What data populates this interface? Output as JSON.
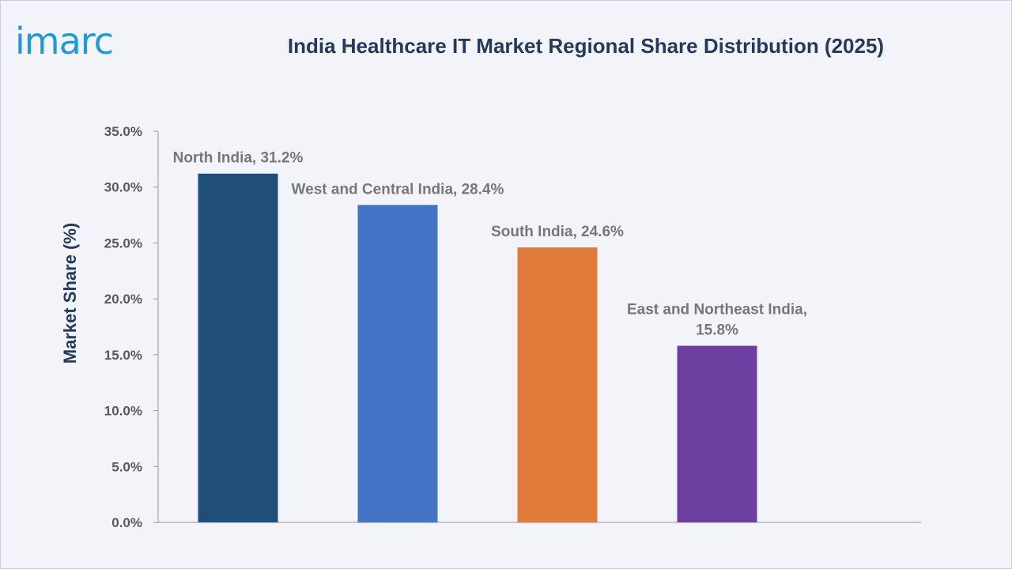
{
  "brand": {
    "logo_text": "imarc"
  },
  "chart_data": {
    "type": "bar",
    "title": "India Healthcare IT Market Regional Share Distribution (2025)",
    "xlabel": "",
    "ylabel": "Market Share (%)",
    "ylim": [
      0,
      35
    ],
    "yticks": [
      "0.0%",
      "5.0%",
      "10.0%",
      "15.0%",
      "20.0%",
      "25.0%",
      "30.0%",
      "35.0%"
    ],
    "categories": [
      "North India",
      "West and Central India",
      "South India",
      "East and Northeast India"
    ],
    "values": [
      31.2,
      28.4,
      24.6,
      15.8
    ],
    "data_labels": [
      [
        "North India, 31.2%"
      ],
      [
        "West and Central India, 28.4%"
      ],
      [
        "South India, 24.6%"
      ],
      [
        "East and Northeast India,",
        "15.8%"
      ]
    ],
    "colors": [
      "#1f4e79",
      "#4472c4",
      "#e07a3a",
      "#6c3fa0"
    ],
    "grid": false,
    "legend": "none"
  }
}
